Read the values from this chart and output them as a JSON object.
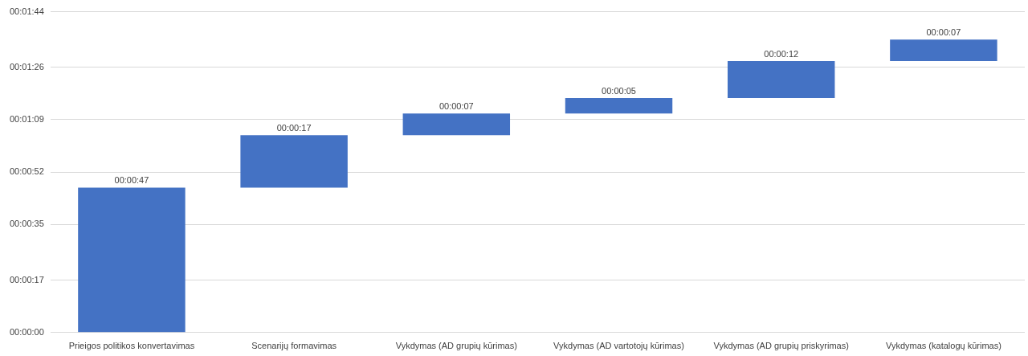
{
  "chart_data": {
    "type": "bar",
    "categories": [
      "Prieigos politikos konvertavimas",
      "Scenarijų formavimas",
      "Vykdymas (AD grupių kūrimas)",
      "Vykdymas (AD vartotojų kūrimas)",
      "Vykdymas (AD grupių priskyrimas)",
      "Vykdymas (katalogų kūrimas)"
    ],
    "values": [
      47,
      17,
      7,
      5,
      12,
      7
    ],
    "base": [
      0,
      47,
      64,
      71,
      76,
      88
    ],
    "value_labels": [
      "00:00:47",
      "00:00:17",
      "00:00:07",
      "00:00:05",
      "00:00:12",
      "00:00:07"
    ],
    "color": "#4472c4",
    "ylim": [
      0,
      104
    ],
    "yticks": [
      {
        "value": 0,
        "label": "00:00:00"
      },
      {
        "value": 17,
        "label": "00:00:17"
      },
      {
        "value": 35,
        "label": "00:00:35"
      },
      {
        "value": 52,
        "label": "00:00:52"
      },
      {
        "value": 69,
        "label": "00:01:09"
      },
      {
        "value": 86,
        "label": "00:01:26"
      },
      {
        "value": 104,
        "label": "00:01:44"
      }
    ],
    "grid": "y"
  }
}
